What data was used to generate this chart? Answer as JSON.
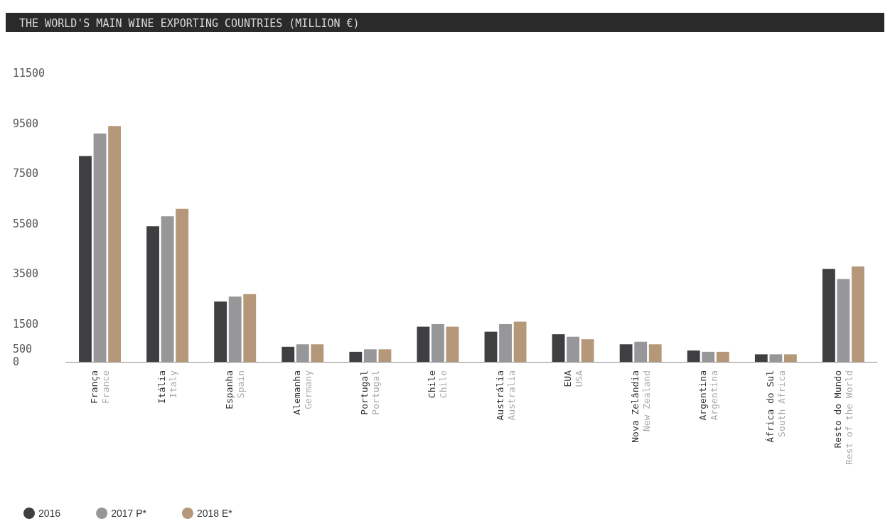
{
  "chart_data": {
    "type": "bar",
    "title": "THE WORLD'S MAIN WINE EXPORTING COUNTRIES (MILLION €)",
    "categories": [
      "França\nFrance",
      "Itália\nItaly",
      "Espanha\nSpain",
      "Alemanha\nGermany",
      "Portugal\nPortugal",
      "Chile\nChile",
      "Austrália\nAustralia",
      "EUA\nUSA",
      "Nova Zelândia\nNew Zealand",
      "Argentina\nArgentina",
      "África do Sul\nSouth Africa",
      "Resto do Mundo\nRest of the World"
    ],
    "series": [
      {
        "name": "2016",
        "color": "#3f3f41",
        "values": [
          8200,
          5400,
          2400,
          600,
          400,
          1400,
          1200,
          1100,
          700,
          450,
          300,
          3700
        ]
      },
      {
        "name": "2017 P*",
        "color": "#97979a",
        "values": [
          9100,
          5800,
          2600,
          700,
          500,
          1500,
          1500,
          1000,
          800,
          400,
          300,
          3300
        ]
      },
      {
        "name": "2018 E*",
        "color": "#b5987a",
        "values": [
          9400,
          6100,
          2700,
          700,
          500,
          1400,
          1600,
          900,
          700,
          400,
          300,
          3800
        ]
      }
    ],
    "ylim": [
      0,
      11500
    ],
    "yticks": [
      0,
      500,
      1500,
      3500,
      5500,
      7500,
      9500,
      11500
    ],
    "grid": false,
    "legend": "bottom left"
  }
}
